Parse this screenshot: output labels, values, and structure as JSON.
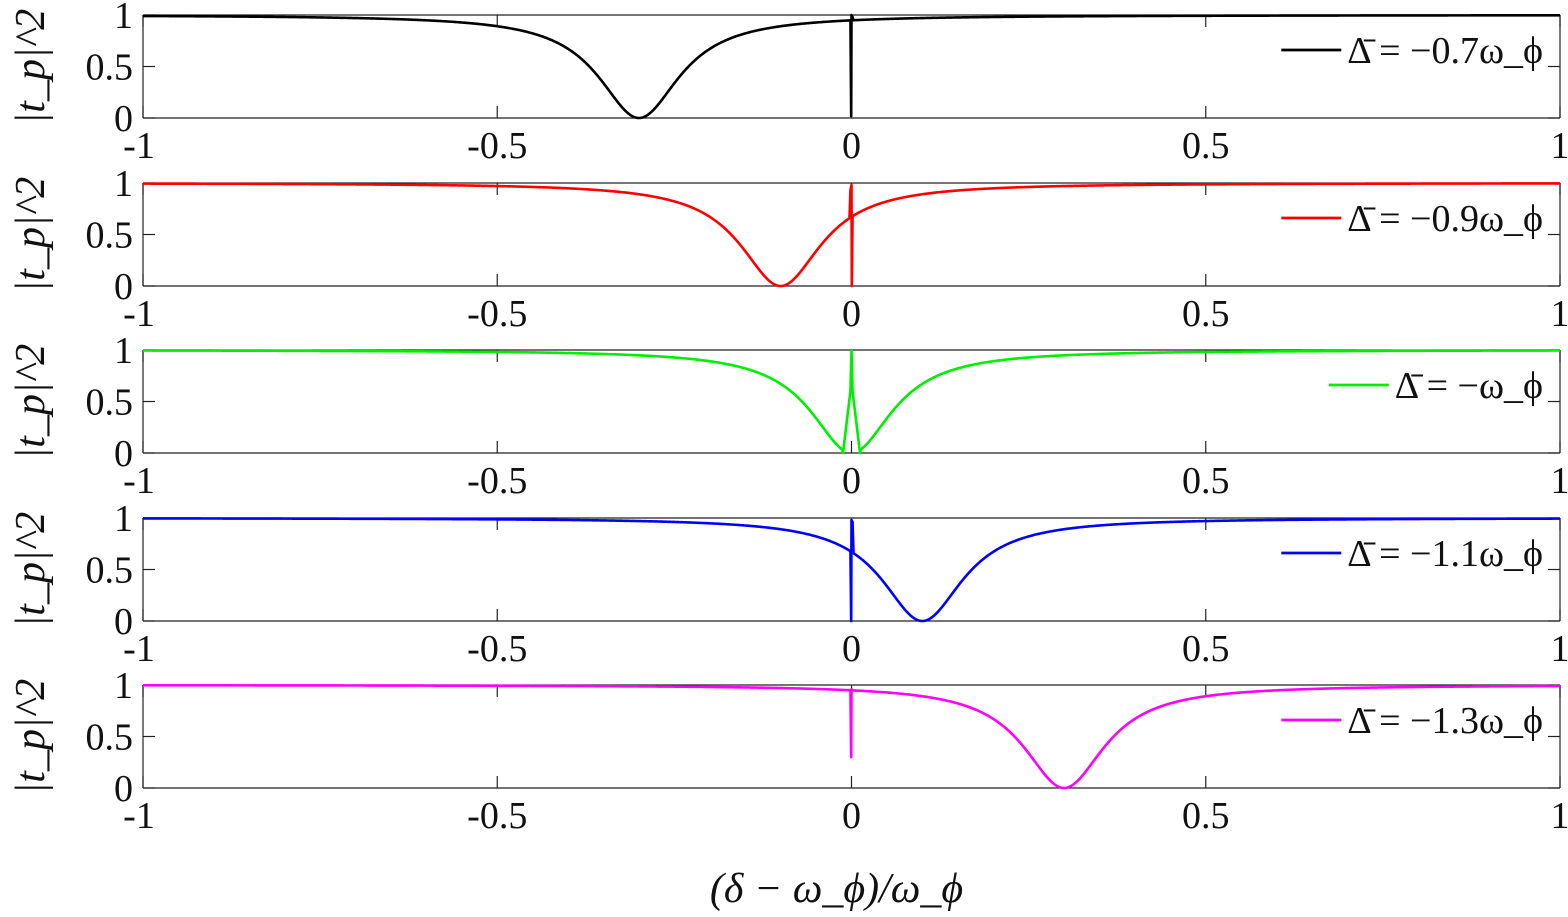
{
  "chart_data": {
    "type": "line",
    "layout": "5 stacked panels sharing x axis",
    "xlabel": "(δ − ω_ϕ)/ω_ϕ",
    "xlim": [
      -1,
      1
    ],
    "xticks": [
      "-1",
      "-0.5",
      "0",
      "0.5",
      "1"
    ],
    "grid": false,
    "legend_placement": "right",
    "panels": [
      {
        "ylabel": "|t_p|^2",
        "ylim": [
          0,
          1
        ],
        "yticks": [
          "0",
          "0.5",
          "1"
        ],
        "series": [
          {
            "name": "Δ̄ = −0.7ω_ϕ",
            "color": "#000000",
            "broad_dip": {
              "center": -0.3,
              "min": 0.0,
              "halfwidth": 0.07
            },
            "narrow_feature": {
              "x": 0.0,
              "peak": 1.0,
              "bottom": 0.02,
              "side": "left"
            }
          }
        ]
      },
      {
        "ylabel": "|t_p|^2",
        "ylim": [
          0,
          1
        ],
        "yticks": [
          "0",
          "0.5",
          "1"
        ],
        "series": [
          {
            "name": "Δ̄ = −0.9ω_ϕ",
            "color": "#ff0000",
            "broad_dip": {
              "center": -0.1,
              "min": 0.0,
              "halfwidth": 0.07
            },
            "narrow_feature": {
              "x": 0.0,
              "peak": 0.98,
              "bottom": 0.0,
              "side": "right"
            }
          }
        ]
      },
      {
        "ylabel": "|t_p|^2",
        "ylim": [
          0,
          1
        ],
        "yticks": [
          "0",
          "0.5",
          "1"
        ],
        "series": [
          {
            "name": "Δ̄ = −ω_ϕ",
            "color": "#00ee00",
            "broad_dip": {
              "center": 0.0,
              "min": 0.0,
              "halfwidth": 0.07
            },
            "narrow_feature": {
              "x": 0.0,
              "peak": 1.0,
              "bottom": 0.0,
              "side": "center"
            },
            "minima_x": [
              -0.01,
              0.01
            ]
          }
        ]
      },
      {
        "ylabel": "|t_p|^2",
        "ylim": [
          0,
          1
        ],
        "yticks": [
          "0",
          "0.5",
          "1"
        ],
        "series": [
          {
            "name": "Δ̄ = −1.1ω_ϕ",
            "color": "#0000ff",
            "broad_dip": {
              "center": 0.1,
              "min": 0.0,
              "halfwidth": 0.07
            },
            "narrow_feature": {
              "x": 0.0,
              "peak": 0.98,
              "bottom": 0.0,
              "side": "left"
            }
          }
        ]
      },
      {
        "ylabel": "|t_p|^2",
        "ylim": [
          0,
          1
        ],
        "yticks": [
          "0",
          "0.5",
          "1"
        ],
        "series": [
          {
            "name": "Δ̄ = −1.3ω_ϕ",
            "color": "#ff00ff",
            "broad_dip": {
              "center": 0.3,
              "min": 0.0,
              "halfwidth": 0.07
            },
            "narrow_feature": {
              "x": 0.0,
              "peak": 0.96,
              "bottom": 0.3,
              "side": "left"
            }
          }
        ]
      }
    ]
  }
}
